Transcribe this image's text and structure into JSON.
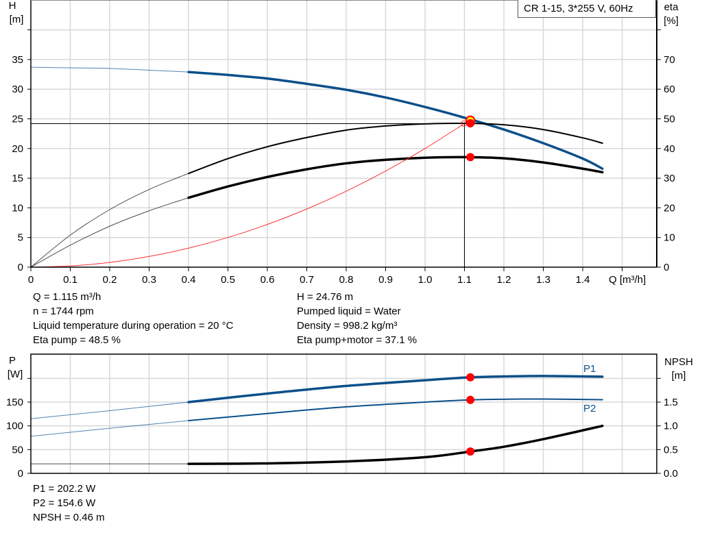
{
  "chart_data": [
    {
      "type": "line",
      "title": "CR 1-15, 3*255 V, 60Hz",
      "xlabel": "Q [m³/h]",
      "ylabel_left": {
        "name": "H",
        "unit": "[m]"
      },
      "ylabel_right": {
        "name": "eta",
        "unit": "[%]"
      },
      "xlim": [
        0,
        1.5
      ],
      "ylim_left": [
        0,
        40
      ],
      "ylim_right": [
        0,
        80
      ],
      "x_ticks": [
        "0",
        "0.1",
        "0.2",
        "0.3",
        "0.4",
        "0.5",
        "0.6",
        "0.7",
        "0.8",
        "0.9",
        "1.0",
        "1.1",
        "1.2",
        "1.3",
        "1.4"
      ],
      "y_ticks_left": [
        "0",
        "5",
        "10",
        "15",
        "20",
        "25",
        "30",
        "35"
      ],
      "y_ticks_right": [
        "0",
        "10",
        "20",
        "30",
        "40",
        "50",
        "60",
        "70"
      ],
      "grid": true,
      "operating_range_q": [
        0.4,
        1.45
      ],
      "series": [
        {
          "id": "head",
          "axis": "left",
          "color": "#0b4f8a",
          "x": [
            0,
            0.1,
            0.2,
            0.3,
            0.4,
            0.5,
            0.6,
            0.7,
            0.8,
            0.9,
            1.0,
            1.1,
            1.2,
            1.3,
            1.4,
            1.45
          ],
          "y": [
            33.7,
            33.6,
            33.5,
            33.2,
            32.9,
            32.4,
            31.8,
            30.9,
            29.9,
            28.6,
            27.0,
            25.2,
            23.2,
            20.9,
            18.3,
            16.6
          ]
        },
        {
          "id": "eta-pump",
          "axis": "right",
          "color": "#000000",
          "x": [
            0,
            0.1,
            0.2,
            0.3,
            0.4,
            0.5,
            0.6,
            0.7,
            0.8,
            0.9,
            1.0,
            1.1,
            1.2,
            1.3,
            1.4,
            1.45
          ],
          "y": [
            0,
            10.8,
            19.4,
            26.2,
            31.6,
            36.6,
            40.6,
            43.7,
            46.2,
            47.6,
            48.3,
            48.5,
            48.0,
            46.4,
            43.6,
            41.8
          ]
        },
        {
          "id": "eta-pump-motor",
          "axis": "right",
          "color": "#000000",
          "x": [
            0,
            0.1,
            0.2,
            0.3,
            0.4,
            0.5,
            0.6,
            0.7,
            0.8,
            0.9,
            1.0,
            1.1,
            1.2,
            1.3,
            1.4,
            1.45
          ],
          "y": [
            0,
            7.4,
            13.8,
            19.0,
            23.4,
            27.2,
            30.4,
            33.0,
            35.0,
            36.2,
            36.9,
            37.1,
            36.7,
            35.3,
            33.2,
            32.0
          ]
        },
        {
          "id": "system-curve",
          "axis": "left",
          "color": "#ff3030",
          "x": [
            0,
            0.1,
            0.2,
            0.3,
            0.4,
            0.5,
            0.6,
            0.7,
            0.8,
            0.9,
            1.0,
            1.1
          ],
          "y": [
            0,
            0.2,
            0.8,
            1.8,
            3.2,
            5.0,
            7.2,
            9.8,
            12.8,
            16.2,
            20.0,
            24.2
          ]
        }
      ],
      "duty_point": {
        "q": 1.115,
        "h": 24.76,
        "eta_pump": 48.5,
        "eta_pump_motor": 37.1
      }
    },
    {
      "type": "line",
      "ylabel_left": {
        "name": "P",
        "unit": "[W]"
      },
      "ylabel_right": {
        "name": "NPSH",
        "unit": "[m]"
      },
      "xlim": [
        0,
        1.5
      ],
      "ylim_left": [
        0,
        250
      ],
      "ylim_right": [
        0,
        2.5
      ],
      "y_ticks_left": [
        "0",
        "50",
        "100",
        "150"
      ],
      "y_ticks_right": [
        "0.0",
        "0.5",
        "1.0",
        "1.5"
      ],
      "grid": true,
      "series": [
        {
          "id": "p1",
          "name": "P1",
          "axis": "left",
          "color": "#0b4f8a",
          "x": [
            0,
            0.2,
            0.4,
            0.6,
            0.8,
            1.0,
            1.115,
            1.2,
            1.3,
            1.45
          ],
          "y": [
            115,
            132,
            150,
            168,
            184,
            196,
            202.2,
            204,
            205,
            203.5
          ]
        },
        {
          "id": "p2",
          "name": "P2",
          "axis": "left",
          "color": "#0b4f8a",
          "x": [
            0,
            0.2,
            0.4,
            0.6,
            0.8,
            1.0,
            1.115,
            1.2,
            1.3,
            1.45
          ],
          "y": [
            78,
            95,
            111,
            126,
            140,
            150,
            154.6,
            156,
            156.5,
            155
          ]
        },
        {
          "id": "npsh",
          "axis": "right",
          "color": "#000000",
          "x": [
            0,
            0.2,
            0.4,
            0.6,
            0.8,
            1.0,
            1.115,
            1.2,
            1.3,
            1.45
          ],
          "y": [
            0.2,
            0.2,
            0.2,
            0.21,
            0.25,
            0.34,
            0.46,
            0.56,
            0.72,
            1.0
          ]
        }
      ],
      "duty_point": {
        "q": 1.115,
        "p1": 202.2,
        "p2": 154.6,
        "npsh": 0.46
      }
    }
  ],
  "info_top": {
    "left": [
      "Q = 1.115 m³/h",
      "n = 1744 rpm",
      "Liquid temperature during operation = 20 °C",
      "Eta pump = 48.5 %"
    ],
    "right": [
      "H = 24.76 m",
      "Pumped liquid = Water",
      "Density = 998.2 kg/m³",
      "Eta pump+motor = 37.1 %"
    ]
  },
  "info_bottom": [
    "P1 = 202.2 W",
    "P2 = 154.6 W",
    "NPSH = 0.46 m"
  ]
}
